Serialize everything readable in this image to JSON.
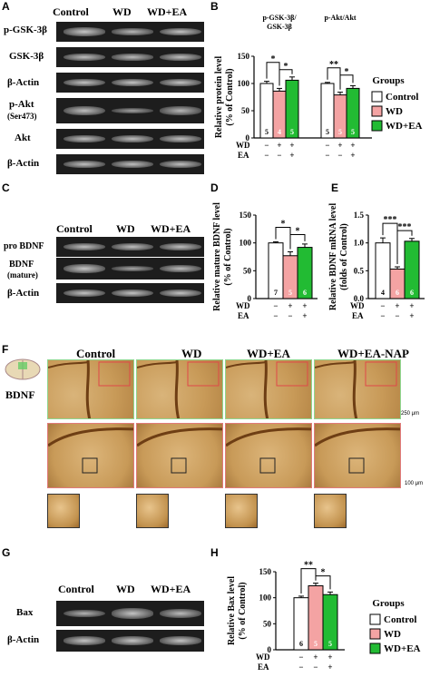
{
  "panels": {
    "A": "A",
    "B": "B",
    "C": "C",
    "D": "D",
    "E": "E",
    "F": "F",
    "G": "G",
    "H": "H"
  },
  "blotA": {
    "columns": [
      "Control",
      "WD",
      "WD+EA"
    ],
    "rows": [
      "p-GSK-3β",
      "GSK-3β",
      "β-Actin",
      "p-Akt",
      "(Ser473)",
      "Akt",
      "β-Actin"
    ]
  },
  "blotC": {
    "columns": [
      "Control",
      "WD",
      "WD+EA"
    ],
    "rows": [
      "pro BDNF",
      "BDNF",
      "(mature)",
      "β-Actin"
    ]
  },
  "blotG": {
    "columns": [
      "Control",
      "WD",
      "WD+EA"
    ],
    "rows": [
      "Bax",
      "β-Actin"
    ]
  },
  "ihc": {
    "columns": [
      "Control",
      "WD",
      "WD+EA",
      "WD+EA-NAP"
    ],
    "row_label": "BDNF",
    "scale1": "250 μm",
    "scale2": "100 μm",
    "colors": {
      "tissue": "#c89a58",
      "dark": "#6e3e14",
      "green_frame": "#8fd68f",
      "red_frame": "#e07a7a"
    }
  },
  "legend": {
    "title": "Groups",
    "items": [
      "Control",
      "WD",
      "WD+EA"
    ],
    "colors": [
      "#ffffff",
      "#f4a3a3",
      "#22bb33"
    ]
  },
  "treat_rows": {
    "wd_label": "WD",
    "ea_label": "EA"
  },
  "chart_data": [
    {
      "panel": "B",
      "type": "bar",
      "ylabel": "Relative protein level",
      "ylabel2": "(% of Control)",
      "ylim": [
        0,
        150
      ],
      "yticks": [
        "0",
        "50",
        "100",
        "150"
      ],
      "groups": [
        {
          "title1": "p-GSK-3β/",
          "title2": "GSK-3β",
          "values": [
            100,
            86,
            106
          ],
          "errors": [
            4,
            5,
            6
          ],
          "n": [
            "5",
            "4",
            "5"
          ],
          "wd": [
            "−",
            "+",
            "+"
          ],
          "ea": [
            "−",
            "−",
            "+"
          ],
          "sig": [
            {
              "from": 0,
              "to": 1,
              "label": "*"
            },
            {
              "from": 1,
              "to": 2,
              "label": "*"
            }
          ]
        },
        {
          "title1": "p-Akt/Akt",
          "title2": "",
          "values": [
            100,
            79,
            91
          ],
          "errors": [
            2,
            5,
            5
          ],
          "n": [
            "5",
            "5",
            "5"
          ],
          "wd": [
            "−",
            "+",
            "+"
          ],
          "ea": [
            "−",
            "−",
            "+"
          ],
          "sig": [
            {
              "from": 0,
              "to": 1,
              "label": "**"
            },
            {
              "from": 1,
              "to": 2,
              "label": "*"
            }
          ]
        }
      ],
      "series": [
        {
          "name": "Control",
          "color": "#ffffff"
        },
        {
          "name": "WD",
          "color": "#f4a3a3"
        },
        {
          "name": "WD+EA",
          "color": "#22bb33"
        }
      ]
    },
    {
      "panel": "D",
      "type": "bar",
      "ylabel": "Relative mature BDNF level",
      "ylabel2": "(% of Control)",
      "ylim": [
        0,
        150
      ],
      "yticks": [
        "0",
        "50",
        "100",
        "150"
      ],
      "values": [
        100,
        77,
        92
      ],
      "errors": [
        2,
        7,
        6
      ],
      "n": [
        "7",
        "5",
        "6"
      ],
      "wd": [
        "−",
        "+",
        "+"
      ],
      "ea": [
        "−",
        "−",
        "+"
      ],
      "sig": [
        {
          "from": 0,
          "to": 1,
          "label": "*"
        },
        {
          "from": 1,
          "to": 2,
          "label": "*"
        }
      ]
    },
    {
      "panel": "E",
      "type": "bar",
      "ylabel": "Relative BDNF mRNA level",
      "ylabel2": "(folds of Control)",
      "ylim": [
        0,
        1.5
      ],
      "yticks": [
        "0.0",
        "0.5",
        "1.0",
        "1.5"
      ],
      "values": [
        1.0,
        0.53,
        1.03
      ],
      "errors": [
        0.09,
        0.04,
        0.05
      ],
      "n": [
        "4",
        "6",
        "6"
      ],
      "wd": [
        "−",
        "+",
        "+"
      ],
      "ea": [
        "−",
        "−",
        "+"
      ],
      "sig": [
        {
          "from": 0,
          "to": 1,
          "label": "***"
        },
        {
          "from": 1,
          "to": 2,
          "label": "***"
        }
      ]
    },
    {
      "panel": "H",
      "type": "bar",
      "ylabel": "Relative Bax level",
      "ylabel2": "(% of Control)",
      "ylim": [
        0,
        150
      ],
      "yticks": [
        "0",
        "50",
        "100",
        "150"
      ],
      "values": [
        100,
        123,
        106
      ],
      "errors": [
        3,
        5,
        5
      ],
      "n": [
        "6",
        "5",
        "5"
      ],
      "wd": [
        "−",
        "+",
        "+"
      ],
      "ea": [
        "−",
        "−",
        "+"
      ],
      "sig": [
        {
          "from": 0,
          "to": 1,
          "label": "**"
        },
        {
          "from": 1,
          "to": 2,
          "label": "*"
        }
      ]
    }
  ]
}
